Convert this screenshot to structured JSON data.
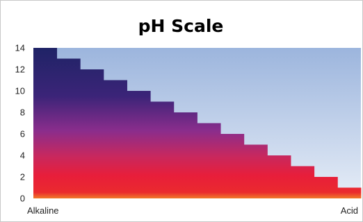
{
  "chart_data": {
    "type": "bar",
    "title": "pH Scale",
    "values": [
      14,
      13,
      12,
      11,
      10,
      9,
      8,
      7,
      6,
      5,
      4,
      3,
      2,
      1
    ],
    "ylim": [
      0,
      14
    ],
    "yticks": [
      0,
      2,
      4,
      6,
      8,
      10,
      12,
      14
    ],
    "grid": false,
    "legend": "none",
    "x_start_label": "Alkaline",
    "x_end_label": "Acid",
    "colors": {
      "plot_bg_top": "#9cb5dd",
      "plot_bg_bottom": "#e6edf7",
      "bar_top": "#1f2366",
      "bar_mid": "#8a2d8c",
      "bar_low": "#e81e3a",
      "bar_base": "#f07a2a"
    }
  }
}
